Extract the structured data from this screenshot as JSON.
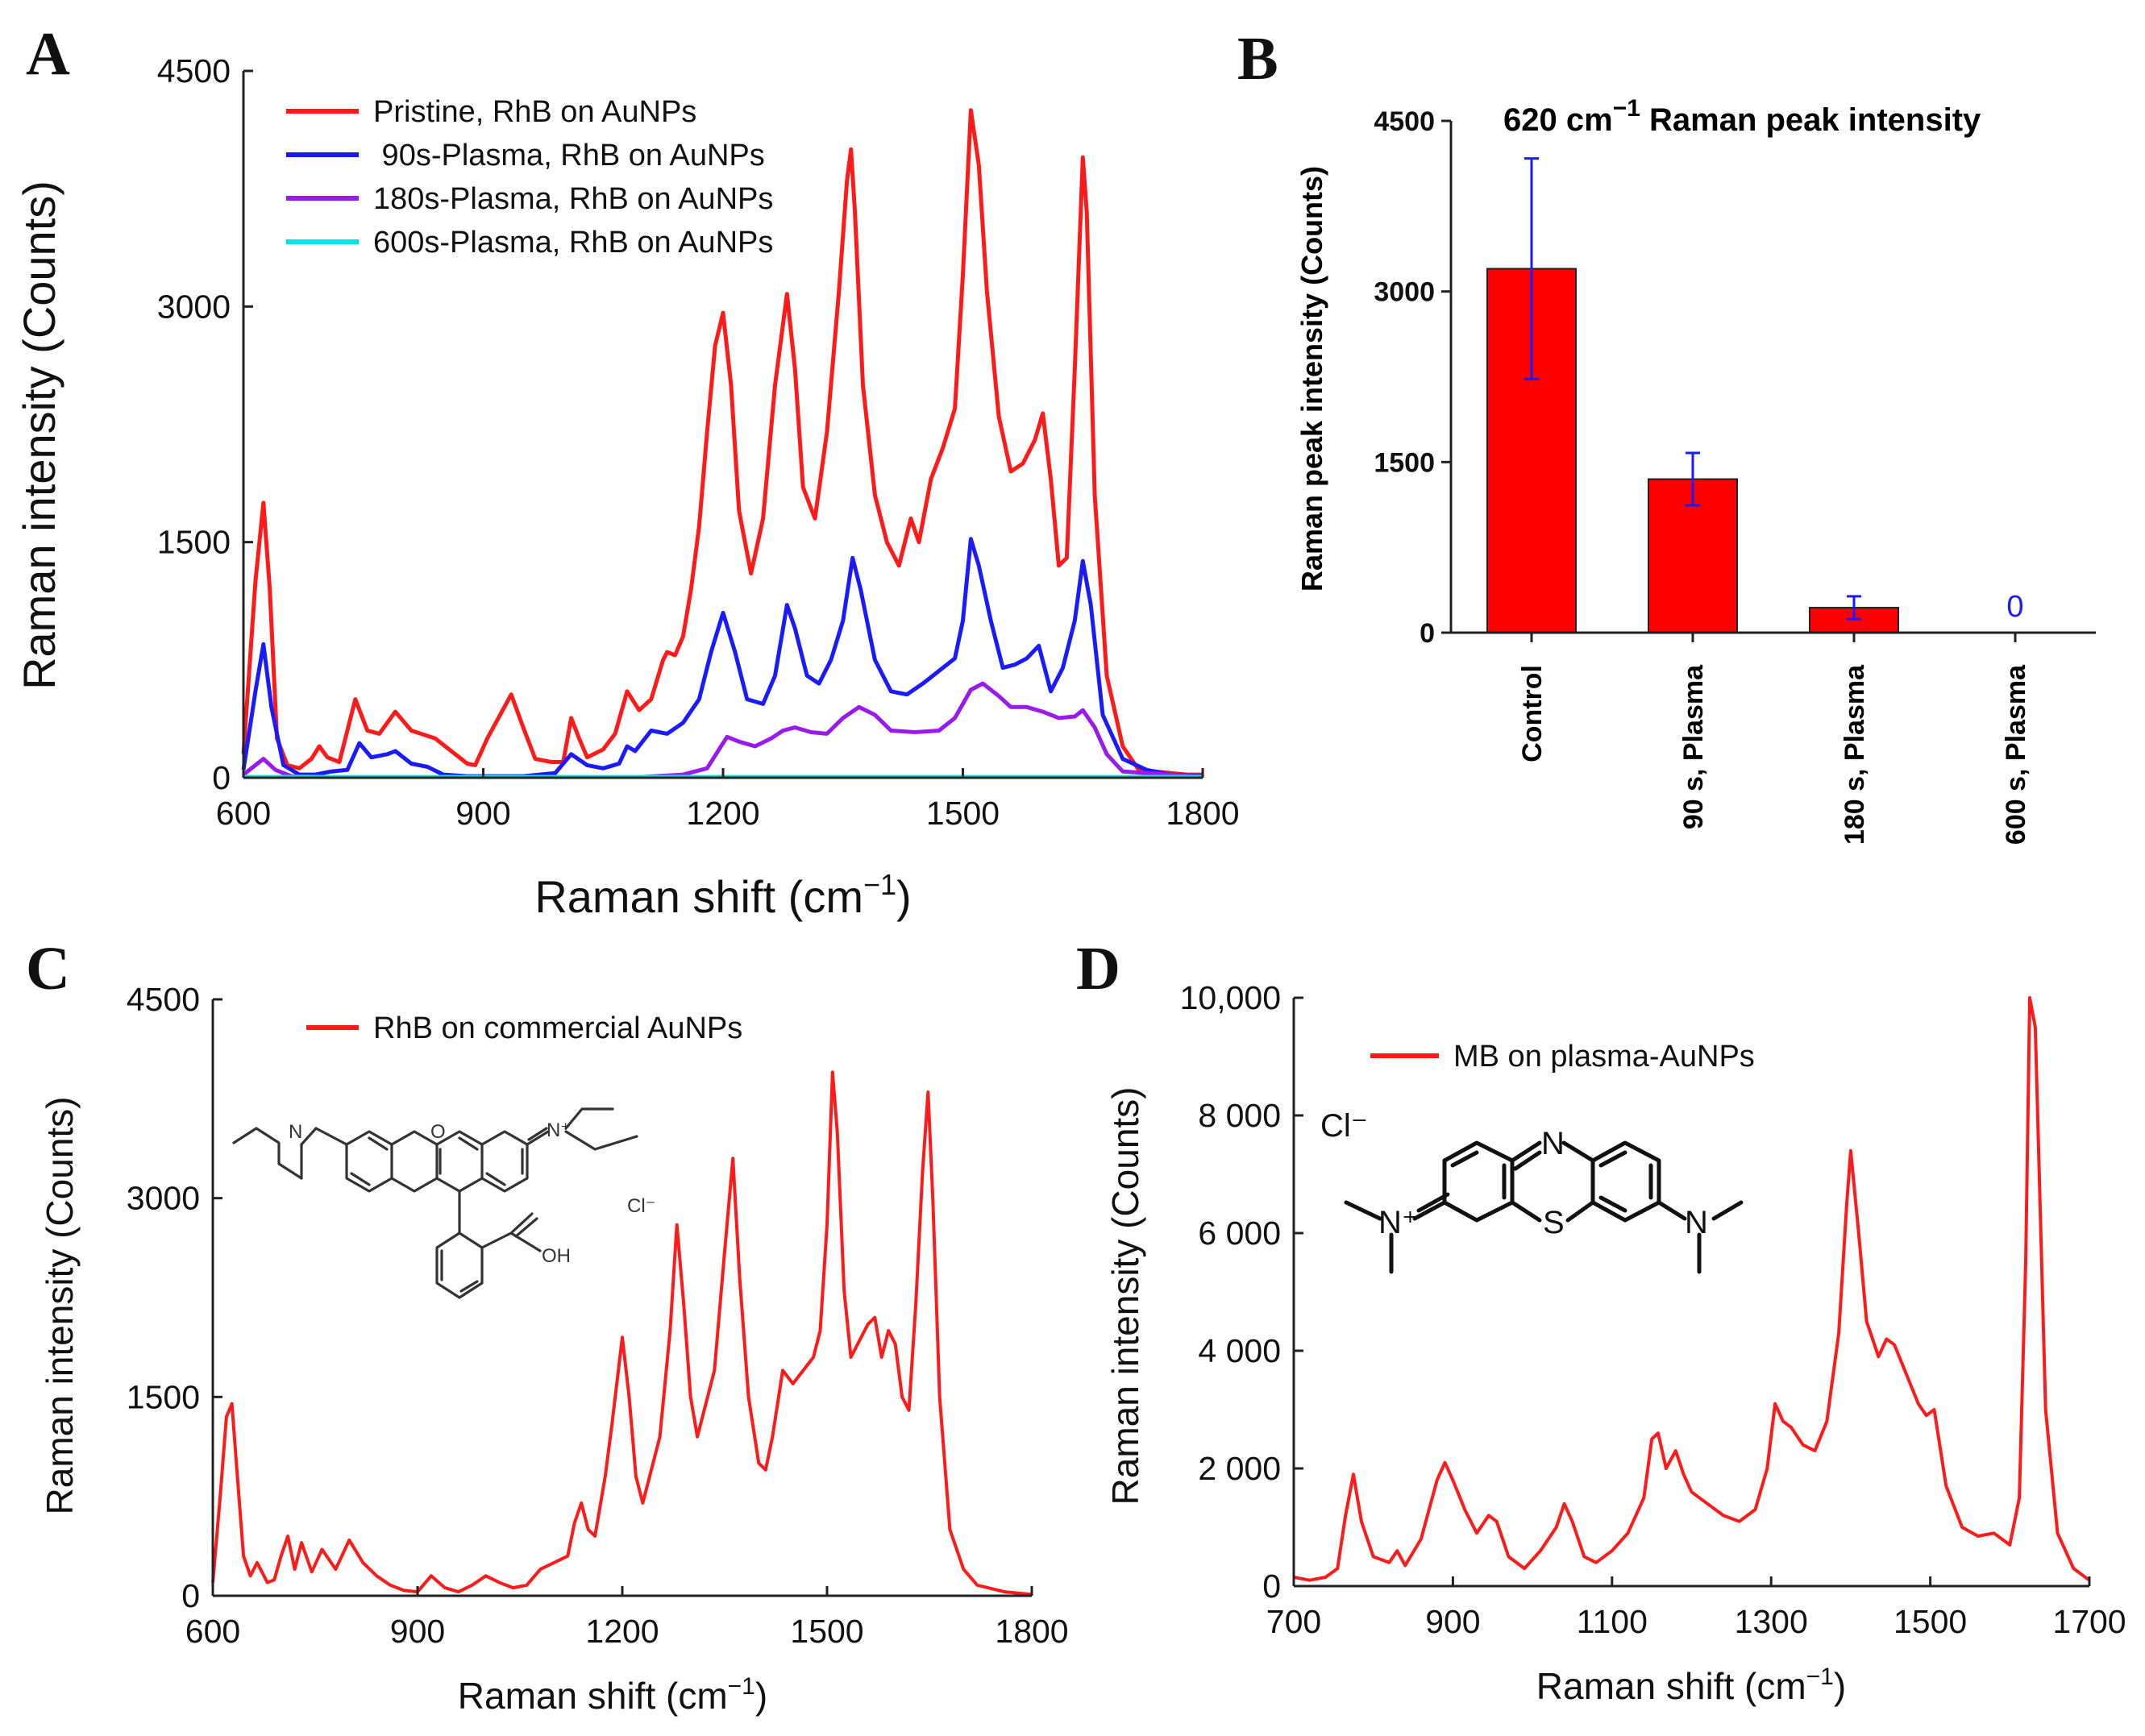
{
  "panels": {
    "A": "A",
    "B": "B",
    "C": "C",
    "D": "D"
  },
  "chart_data": [
    {
      "id": "A",
      "type": "line",
      "title": "",
      "xlabel": "Raman shift (cm⁻¹)",
      "xlabel_main": "Raman shift",
      "xlabel_unit": "(cm",
      "xlabel_sup": "−1",
      "xlabel_close": ")",
      "ylabel": "Raman intensity (Counts)",
      "xlim": [
        600,
        1800
      ],
      "ylim": [
        0,
        4500
      ],
      "xticks": [
        "600",
        "900",
        "1200",
        "1500",
        "1800"
      ],
      "yticks": [
        "0",
        "1500",
        "3000",
        "4500"
      ],
      "series": [
        {
          "name": "Pristine, RhB on AuNPs",
          "color": "#ff1a1a",
          "x": [
            600,
            615,
            625,
            633,
            642,
            655,
            670,
            685,
            695,
            705,
            720,
            740,
            755,
            770,
            790,
            810,
            840,
            860,
            880,
            890,
            905,
            935,
            950,
            965,
            985,
            1000,
            1010,
            1020,
            1030,
            1050,
            1065,
            1080,
            1095,
            1110,
            1125,
            1130,
            1140,
            1150,
            1160,
            1170,
            1180,
            1190,
            1200,
            1210,
            1220,
            1235,
            1250,
            1265,
            1280,
            1290,
            1300,
            1315,
            1330,
            1345,
            1355,
            1360,
            1365,
            1375,
            1390,
            1405,
            1420,
            1435,
            1445,
            1460,
            1475,
            1490,
            1500,
            1510,
            1520,
            1530,
            1545,
            1560,
            1575,
            1590,
            1600,
            1610,
            1620,
            1630,
            1640,
            1650,
            1655,
            1665,
            1680,
            1700,
            1720,
            1740,
            1760,
            1780,
            1800
          ],
          "y": [
            150,
            1250,
            1750,
            1200,
            250,
            80,
            60,
            120,
            200,
            130,
            100,
            500,
            300,
            280,
            420,
            300,
            250,
            170,
            90,
            80,
            250,
            530,
            320,
            120,
            100,
            100,
            380,
            250,
            130,
            180,
            280,
            550,
            430,
            500,
            750,
            800,
            780,
            900,
            1200,
            1600,
            2200,
            2750,
            2960,
            2500,
            1700,
            1300,
            1650,
            2500,
            3080,
            2600,
            1850,
            1650,
            2200,
            3100,
            3800,
            4000,
            3600,
            2500,
            1800,
            1500,
            1350,
            1650,
            1500,
            1900,
            2100,
            2350,
            3200,
            4250,
            3900,
            3100,
            2300,
            1950,
            2000,
            2150,
            2320,
            1900,
            1350,
            1400,
            2600,
            3950,
            3600,
            1800,
            650,
            200,
            50,
            40,
            30,
            20,
            20
          ]
        },
        {
          "name": "90s-Plasma, RhB on AuNPs",
          "color": "#1a1aff",
          "x": [
            600,
            615,
            625,
            635,
            650,
            670,
            690,
            710,
            730,
            745,
            760,
            780,
            790,
            810,
            830,
            850,
            880,
            910,
            950,
            990,
            1010,
            1030,
            1050,
            1070,
            1080,
            1090,
            1110,
            1130,
            1150,
            1170,
            1185,
            1200,
            1215,
            1230,
            1250,
            1265,
            1280,
            1290,
            1305,
            1320,
            1335,
            1350,
            1362,
            1372,
            1390,
            1410,
            1430,
            1450,
            1470,
            1490,
            1500,
            1510,
            1520,
            1535,
            1550,
            1565,
            1580,
            1595,
            1610,
            1625,
            1640,
            1650,
            1660,
            1675,
            1700,
            1730,
            1760,
            1800
          ],
          "y": [
            50,
            550,
            850,
            450,
            80,
            20,
            20,
            40,
            50,
            220,
            130,
            150,
            170,
            90,
            70,
            20,
            10,
            10,
            10,
            30,
            150,
            80,
            60,
            90,
            200,
            170,
            300,
            280,
            350,
            500,
            800,
            1050,
            800,
            500,
            470,
            650,
            1100,
            950,
            650,
            600,
            750,
            1000,
            1400,
            1200,
            750,
            550,
            530,
            600,
            680,
            760,
            1000,
            1520,
            1350,
            1000,
            700,
            720,
            760,
            840,
            550,
            700,
            1000,
            1380,
            1100,
            400,
            120,
            50,
            20,
            10
          ]
        },
        {
          "name": "180s-Plasma, RhB on AuNPs",
          "color": "#9a1aee",
          "x": [
            600,
            615,
            625,
            640,
            660,
            700,
            800,
            900,
            1000,
            1100,
            1150,
            1180,
            1195,
            1205,
            1220,
            1240,
            1260,
            1275,
            1290,
            1310,
            1330,
            1350,
            1370,
            1390,
            1410,
            1440,
            1470,
            1490,
            1510,
            1525,
            1545,
            1560,
            1580,
            1600,
            1620,
            1640,
            1650,
            1665,
            1680,
            1700,
            1800
          ],
          "y": [
            20,
            80,
            120,
            50,
            10,
            5,
            5,
            5,
            5,
            5,
            20,
            60,
            180,
            260,
            230,
            200,
            250,
            300,
            320,
            290,
            280,
            380,
            450,
            400,
            300,
            290,
            300,
            380,
            560,
            600,
            520,
            450,
            450,
            420,
            380,
            390,
            430,
            320,
            150,
            40,
            5
          ]
        },
        {
          "name": "600s-Plasma, RhB on AuNPs",
          "color": "#00e5e5",
          "x": [
            600,
            1800
          ],
          "y": [
            5,
            5
          ]
        }
      ]
    },
    {
      "id": "B",
      "type": "bar",
      "title": "620 cm⁻¹ Raman peak intensity",
      "title_main": "620 cm",
      "title_sup": "−1",
      "title_rest": " Raman peak intensity",
      "xlabel": "",
      "ylabel": "Raman peak intensity (Counts)",
      "ylim": [
        0,
        4500
      ],
      "yticks": [
        "0",
        "1500",
        "3000",
        "4500"
      ],
      "categories": [
        "Control",
        "90 s, Plasma",
        "180 s, Plasma",
        "600 s, Plasma"
      ],
      "values": [
        3200,
        1350,
        220,
        0
      ],
      "errors": [
        970,
        230,
        100,
        0
      ],
      "bar_color": "#ff0000",
      "error_color": "#1a1aff",
      "annotations": [
        "",
        "",
        "",
        "0"
      ]
    },
    {
      "id": "C",
      "type": "line",
      "title": "",
      "xlabel": "Raman shift (cm⁻¹)",
      "xlabel_main": "Raman shift",
      "xlabel_unit": "(cm",
      "xlabel_sup": "−1",
      "xlabel_close": ")",
      "ylabel": "Raman intensity (Counts)",
      "xlim": [
        600,
        1800
      ],
      "ylim": [
        0,
        4500
      ],
      "xticks": [
        "600",
        "900",
        "1200",
        "1500",
        "1800"
      ],
      "yticks": [
        "0",
        "1500",
        "3000",
        "4500"
      ],
      "series": [
        {
          "name": "RhB on commercial AuNPs",
          "color": "#ff1a1a",
          "x": [
            600,
            610,
            620,
            628,
            636,
            645,
            655,
            665,
            680,
            690,
            700,
            710,
            720,
            730,
            745,
            760,
            780,
            800,
            820,
            840,
            860,
            880,
            900,
            920,
            940,
            960,
            980,
            1000,
            1020,
            1040,
            1060,
            1080,
            1100,
            1120,
            1130,
            1140,
            1150,
            1160,
            1175,
            1185,
            1200,
            1210,
            1220,
            1230,
            1240,
            1255,
            1270,
            1280,
            1290,
            1300,
            1310,
            1320,
            1335,
            1350,
            1362,
            1372,
            1385,
            1400,
            1410,
            1420,
            1435,
            1450,
            1465,
            1480,
            1490,
            1500,
            1508,
            1515,
            1525,
            1535,
            1545,
            1560,
            1570,
            1580,
            1590,
            1600,
            1610,
            1620,
            1630,
            1640,
            1648,
            1655,
            1665,
            1680,
            1700,
            1720,
            1760,
            1800
          ],
          "y": [
            100,
            700,
            1350,
            1450,
            900,
            300,
            150,
            250,
            100,
            120,
            300,
            450,
            200,
            400,
            180,
            350,
            200,
            420,
            250,
            150,
            80,
            40,
            30,
            150,
            60,
            30,
            80,
            150,
            100,
            60,
            80,
            200,
            250,
            300,
            550,
            700,
            500,
            450,
            900,
            1300,
            1950,
            1500,
            900,
            700,
            900,
            1200,
            2000,
            2800,
            2200,
            1500,
            1200,
            1400,
            1700,
            2600,
            3300,
            2400,
            1500,
            1000,
            950,
            1200,
            1700,
            1600,
            1700,
            1800,
            2000,
            2800,
            3950,
            3500,
            2300,
            1800,
            1900,
            2050,
            2100,
            1800,
            2000,
            1900,
            1500,
            1400,
            2200,
            3200,
            3800,
            3000,
            1500,
            500,
            200,
            80,
            30,
            10
          ]
        }
      ],
      "inset_labels": {
        "cl": "Cl⁻",
        "oh": "OH",
        "n_plus": "N⁺",
        "o": "O",
        "n": "N"
      }
    },
    {
      "id": "D",
      "type": "line",
      "title": "",
      "xlabel": "Raman shift (cm⁻¹)",
      "xlabel_main": "Raman shift",
      "xlabel_unit": "(cm",
      "xlabel_sup": "−1",
      "xlabel_close": ")",
      "ylabel": "Raman intensity (Counts)",
      "xlim": [
        700,
        1700
      ],
      "ylim": [
        0,
        10000
      ],
      "xticks": [
        "700",
        "900",
        "1100",
        "1300",
        "1500",
        "1700"
      ],
      "yticks": [
        "0",
        "2 000",
        "4 000",
        "6 000",
        "8 000",
        "10,000"
      ],
      "series": [
        {
          "name": "MB on plasma-AuNPs",
          "color": "#ff1a1a",
          "x": [
            700,
            720,
            740,
            755,
            765,
            775,
            785,
            800,
            820,
            830,
            840,
            860,
            880,
            890,
            900,
            915,
            930,
            945,
            955,
            970,
            990,
            1010,
            1030,
            1040,
            1050,
            1065,
            1080,
            1100,
            1120,
            1140,
            1150,
            1158,
            1168,
            1180,
            1190,
            1200,
            1220,
            1240,
            1260,
            1280,
            1295,
            1305,
            1315,
            1325,
            1340,
            1355,
            1370,
            1385,
            1395,
            1400,
            1410,
            1420,
            1435,
            1445,
            1455,
            1470,
            1485,
            1495,
            1505,
            1520,
            1540,
            1560,
            1580,
            1600,
            1612,
            1620,
            1625,
            1632,
            1645,
            1660,
            1680,
            1700
          ],
          "y": [
            150,
            100,
            150,
            300,
            1200,
            1900,
            1100,
            500,
            400,
            600,
            350,
            800,
            1800,
            2100,
            1800,
            1300,
            900,
            1200,
            1100,
            500,
            300,
            600,
            1000,
            1400,
            1100,
            500,
            400,
            600,
            900,
            1500,
            2500,
            2600,
            2000,
            2300,
            1900,
            1600,
            1400,
            1200,
            1100,
            1300,
            2000,
            3100,
            2800,
            2700,
            2400,
            2300,
            2800,
            4300,
            6500,
            7400,
            6000,
            4500,
            3900,
            4200,
            4100,
            3600,
            3100,
            2900,
            3000,
            1700,
            1000,
            850,
            900,
            700,
            1500,
            5500,
            10000,
            9500,
            3000,
            900,
            300,
            100
          ]
        }
      ],
      "inset_labels": {
        "cl": "Cl⁻",
        "n_top": "N",
        "s": "S",
        "n_plus": "N⁺",
        "n_right": "N"
      }
    }
  ]
}
